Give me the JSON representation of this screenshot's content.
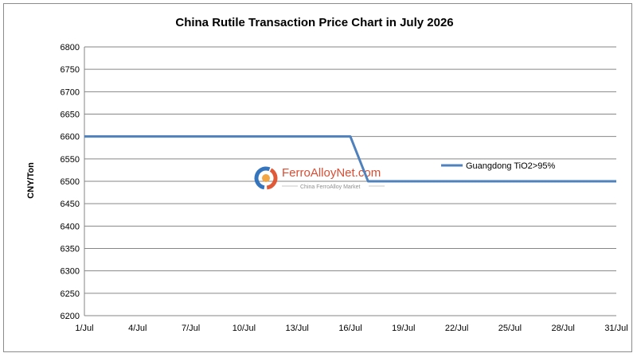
{
  "chart_data": {
    "type": "line",
    "title": "China Rutile Transaction Price Chart in July 2026",
    "xlabel": "",
    "ylabel": "CNY/Ton",
    "categories": [
      "1/Jul",
      "4/Jul",
      "7/Jul",
      "10/Jul",
      "13/Jul",
      "16/Jul",
      "19/Jul",
      "22/Jul",
      "25/Jul",
      "28/Jul",
      "31/Jul"
    ],
    "x": [
      1,
      16,
      17,
      31
    ],
    "series": [
      {
        "name": "Guangdong TiO2>95%",
        "values": [
          6600,
          6600,
          6500,
          6500
        ],
        "color": "#4f81bd"
      }
    ],
    "ylim": [
      6200,
      6800
    ],
    "yticks": [
      6200,
      6250,
      6300,
      6350,
      6400,
      6450,
      6500,
      6550,
      6600,
      6650,
      6700,
      6750,
      6800
    ],
    "grid": true,
    "legend": "right"
  },
  "watermark": {
    "brand": "FerroAlloyNet.com",
    "tagline": "China FerroAlloy Market"
  }
}
